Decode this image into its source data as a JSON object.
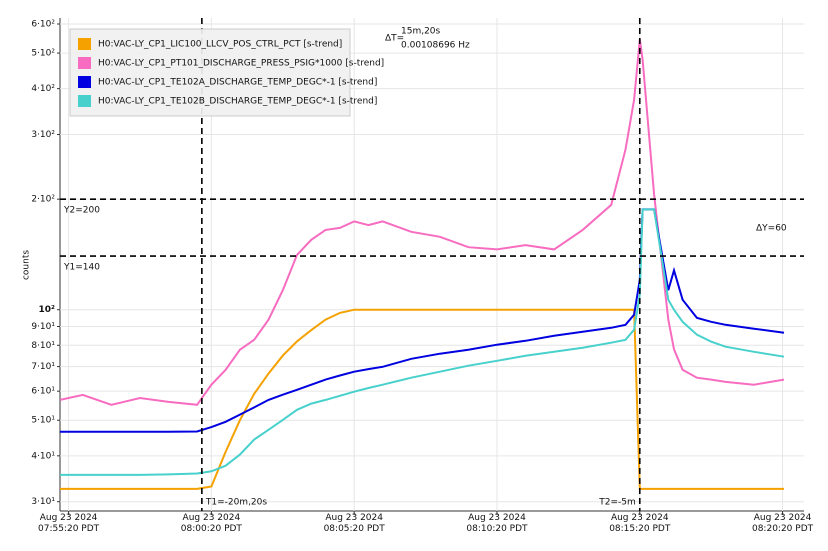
{
  "chart_data": {
    "type": "line",
    "log_y": true,
    "grid": true,
    "y_label": "counts",
    "legend": "top-left",
    "x": [
      -5.3,
      -4.5,
      -3.5,
      -2.5,
      -1.5,
      -0.5,
      0,
      0.5,
      1,
      1.5,
      2,
      2.5,
      3,
      3.5,
      4,
      4.5,
      5,
      5.5,
      6,
      7,
      8,
      9,
      10,
      11,
      12,
      13,
      14,
      14.5,
      14.8,
      15,
      15.1,
      15.5,
      16,
      16.2,
      16.5,
      17,
      17.5,
      18,
      19,
      20.05
    ],
    "xlim": [
      -5.3,
      20.05
    ],
    "xticks": [
      {
        "value": -5,
        "label": "Aug 23 2024\n07:55:20 PDT"
      },
      {
        "value": 0,
        "label": "Aug 23 2024\n08:00:20 PDT"
      },
      {
        "value": 5,
        "label": "Aug 23 2024\n08:05:20 PDT"
      },
      {
        "value": 10,
        "label": "Aug 23 2024\n08:10:20 PDT"
      },
      {
        "value": 15,
        "label": "Aug 23 2024\n08:15:20 PDT"
      },
      {
        "value": 20,
        "label": "Aug 23 2024\n08:20:20 PDT"
      }
    ],
    "ylim": [
      28.3,
      623
    ],
    "yticks": [
      {
        "value": 30,
        "label": "3·10¹"
      },
      {
        "value": 40,
        "label": "4·10¹"
      },
      {
        "value": 50,
        "label": "5·10¹"
      },
      {
        "value": 60,
        "label": "6·10¹"
      },
      {
        "value": 70,
        "label": "7·10¹"
      },
      {
        "value": 80,
        "label": "8·10¹"
      },
      {
        "value": 90,
        "label": "9·10¹"
      },
      {
        "value": 100,
        "label": "10²"
      },
      {
        "value": 200,
        "label": "2·10²"
      },
      {
        "value": 300,
        "label": "3·10²"
      },
      {
        "value": 400,
        "label": "4·10²"
      },
      {
        "value": 500,
        "label": "5·10²"
      },
      {
        "value": 600,
        "label": "6·10²"
      }
    ],
    "series": [
      {
        "name": "H0:VAC-LY_CP1_LIC100_LLCV_POS_CTRL_PCT [s-trend]",
        "color": "#f5a100",
        "values": [
          32.5,
          32.5,
          32.5,
          32.5,
          32.5,
          32.5,
          33,
          41,
          50,
          59,
          67,
          75,
          82,
          88,
          94,
          98,
          100,
          100,
          100,
          100,
          100,
          100,
          100,
          100,
          100,
          100,
          100,
          100,
          100,
          32.5,
          32.5,
          32.5,
          32.5,
          32.5,
          32.5,
          32.5,
          32.5,
          32.5,
          32.5,
          32.5
        ]
      },
      {
        "name": "H0:VAC-LY_CP1_PT101_DISCHARGE_PRESS_PSIG*1000 [s-trend]",
        "color": "#f76cc0",
        "values": [
          56.8,
          58.6,
          55.1,
          57.5,
          56.1,
          55.1,
          62.5,
          68.6,
          77.8,
          82.8,
          93.9,
          113,
          141,
          155,
          165,
          167,
          174,
          170,
          174,
          163,
          158,
          148,
          146,
          150,
          146,
          165,
          193,
          273,
          373,
          545,
          480,
          206,
          94,
          78,
          68.6,
          65.3,
          64.5,
          63.6,
          62.5,
          64.5
        ]
      },
      {
        "name": "H0:VAC-LY_CP1_TE102A_DISCHARGE_TEMP_DEGC*-1 [s-trend]",
        "color": "#0000e0",
        "values": [
          46.5,
          46.5,
          46.5,
          46.5,
          46.5,
          46.6,
          47.9,
          49.5,
          51.8,
          54.2,
          56.8,
          58.7,
          60.5,
          62.5,
          64.5,
          66.2,
          67.8,
          68.9,
          69.9,
          73.5,
          75.9,
          77.8,
          80.3,
          82.3,
          84.9,
          87.1,
          89.3,
          91.0,
          96.9,
          120.7,
          187.6,
          187.6,
          113,
          128,
          106.5,
          95,
          92.7,
          91,
          88.8,
          86.6
        ]
      },
      {
        "name": "H0:VAC-LY_CP1_TE102B_DISCHARGE_TEMP_DEGC*-1 [s-trend]",
        "color": "#48d1cc",
        "values": [
          35.5,
          35.5,
          35.5,
          35.5,
          35.6,
          35.8,
          36.3,
          37.6,
          40.3,
          44.3,
          47.1,
          50.1,
          53.4,
          55.5,
          56.8,
          58.3,
          59.8,
          61.2,
          62.5,
          65.3,
          67.8,
          70.4,
          72.6,
          74.9,
          76.8,
          78.8,
          81.3,
          82.8,
          88.2,
          110,
          187.6,
          187.6,
          106.5,
          100,
          92.7,
          85.5,
          81.8,
          79.3,
          76.8,
          74.5
        ]
      }
    ],
    "cursors": {
      "x": [
        {
          "value": -0.333,
          "label": "T1=-20m,20s"
        },
        {
          "value": 15,
          "label": "T2=-5m"
        }
      ],
      "y": [
        {
          "value": 200,
          "label": "Y2=200"
        },
        {
          "value": 140,
          "label": "Y1=140"
        }
      ],
      "delta_t_label": "ΔT=",
      "delta_t": [
        "15m,20s",
        "0.00108696 Hz"
      ],
      "delta_y": "ΔY=60"
    }
  }
}
